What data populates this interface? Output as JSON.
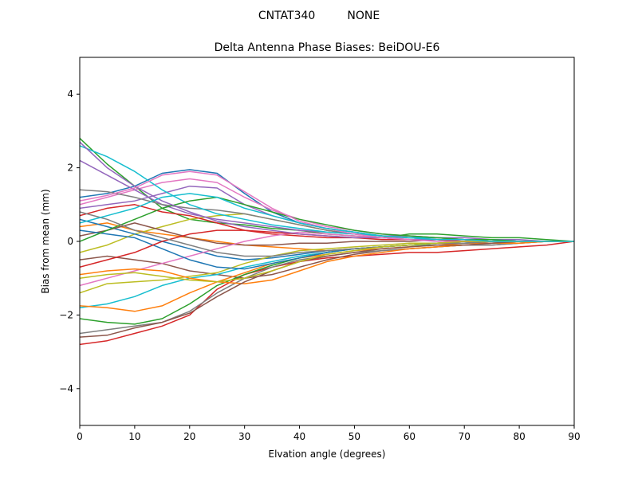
{
  "figure": {
    "suptitle": "CNTAT340         NONE"
  },
  "chart_data": {
    "type": "line",
    "title": "Delta Antenna Phase Biases: BeiDOU-E6",
    "xlabel": "Elvation angle (degrees)",
    "ylabel": "Bias from mean (mm)",
    "xlim": [
      0,
      90
    ],
    "ylim": [
      -5,
      5
    ],
    "xticks": [
      0,
      10,
      20,
      30,
      40,
      50,
      60,
      70,
      80,
      90
    ],
    "yticks": [
      -4,
      -2,
      0,
      2,
      4
    ],
    "xtick_labels": [
      "0",
      "10",
      "20",
      "30",
      "40",
      "50",
      "60",
      "70",
      "80",
      "90"
    ],
    "ytick_labels": [
      "−4",
      "−2",
      "0",
      "2",
      "4"
    ],
    "grid": false,
    "legend": "none",
    "x": [
      0,
      5,
      10,
      15,
      20,
      25,
      30,
      35,
      40,
      45,
      50,
      55,
      60,
      65,
      70,
      75,
      80,
      85,
      90
    ],
    "color_cycle": [
      "#1f77b4",
      "#ff7f0e",
      "#2ca02c",
      "#d62728",
      "#9467bd",
      "#8c564b",
      "#e377c2",
      "#7f7f7f",
      "#bcbd22",
      "#17becf"
    ],
    "series": [
      {
        "values": [
          1.2,
          1.3,
          1.5,
          1.85,
          1.95,
          1.85,
          1.3,
          0.8,
          0.5,
          0.35,
          0.25,
          0.15,
          0.1,
          0.1,
          0.05,
          0.05,
          0.0,
          0.0,
          0
        ]
      },
      {
        "values": [
          0.4,
          0.5,
          0.3,
          0.2,
          0.1,
          0.0,
          -0.1,
          -0.15,
          -0.2,
          -0.25,
          -0.2,
          -0.15,
          -0.1,
          -0.05,
          0.0,
          0.0,
          0.0,
          0.0,
          0
        ]
      },
      {
        "values": [
          2.8,
          2.1,
          1.5,
          0.9,
          0.6,
          0.5,
          0.45,
          0.35,
          0.3,
          0.2,
          0.15,
          0.1,
          0.2,
          0.2,
          0.15,
          0.1,
          0.1,
          0.05,
          0
        ]
      },
      {
        "values": [
          -2.8,
          -2.7,
          -2.5,
          -2.3,
          -2.0,
          -1.3,
          -0.9,
          -0.7,
          -0.55,
          -0.45,
          -0.4,
          -0.35,
          -0.3,
          -0.3,
          -0.25,
          -0.2,
          -0.15,
          -0.1,
          0
        ]
      },
      {
        "values": [
          0.9,
          1.0,
          1.1,
          1.3,
          1.5,
          1.45,
          1.0,
          0.7,
          0.5,
          0.35,
          0.25,
          0.15,
          0.1,
          0.05,
          0.05,
          0.0,
          0.0,
          0.0,
          0
        ]
      },
      {
        "values": [
          -0.5,
          -0.4,
          -0.5,
          -0.6,
          -0.8,
          -0.9,
          -1.0,
          -0.9,
          -0.7,
          -0.5,
          -0.35,
          -0.25,
          -0.2,
          -0.15,
          -0.1,
          -0.1,
          -0.05,
          0.0,
          0
        ]
      },
      {
        "values": [
          1.0,
          1.2,
          1.4,
          1.6,
          1.7,
          1.6,
          1.2,
          0.85,
          0.6,
          0.4,
          0.3,
          0.2,
          0.15,
          0.1,
          0.05,
          0.05,
          0.0,
          0.0,
          0
        ]
      },
      {
        "values": [
          -2.5,
          -2.4,
          -2.3,
          -2.2,
          -1.9,
          -1.4,
          -1.0,
          -0.7,
          -0.5,
          -0.4,
          -0.3,
          -0.25,
          -0.2,
          -0.15,
          -0.1,
          -0.1,
          -0.05,
          0.0,
          0
        ]
      },
      {
        "values": [
          -0.3,
          -0.1,
          0.2,
          0.4,
          0.6,
          0.7,
          0.75,
          0.6,
          0.45,
          0.3,
          0.2,
          0.15,
          0.1,
          0.05,
          0.05,
          0.0,
          0.0,
          0.0,
          0
        ]
      },
      {
        "values": [
          -1.8,
          -1.7,
          -1.5,
          -1.2,
          -1.0,
          -0.9,
          -0.7,
          -0.55,
          -0.4,
          -0.3,
          -0.2,
          -0.15,
          -0.1,
          -0.1,
          -0.05,
          -0.05,
          0.0,
          0.0,
          0
        ]
      },
      {
        "values": [
          0.6,
          0.4,
          0.2,
          0.0,
          -0.2,
          -0.4,
          -0.5,
          -0.45,
          -0.35,
          -0.25,
          -0.2,
          -0.15,
          -0.1,
          -0.05,
          -0.05,
          0.0,
          0.0,
          0.0,
          0
        ]
      },
      {
        "values": [
          -1.75,
          -1.8,
          -1.9,
          -1.75,
          -1.4,
          -1.1,
          -0.85,
          -0.6,
          -0.45,
          -0.35,
          -0.25,
          -0.2,
          -0.15,
          -0.1,
          -0.05,
          -0.05,
          0.0,
          0.0,
          0
        ]
      },
      {
        "values": [
          -2.1,
          -2.2,
          -2.25,
          -2.1,
          -1.7,
          -1.2,
          -0.9,
          -0.65,
          -0.45,
          -0.3,
          -0.2,
          -0.15,
          -0.1,
          -0.05,
          0.0,
          0.0,
          0.0,
          0.0,
          0
        ]
      },
      {
        "values": [
          0.7,
          0.9,
          1.0,
          0.8,
          0.7,
          0.5,
          0.3,
          0.2,
          0.15,
          0.1,
          0.1,
          0.05,
          0.05,
          0.05,
          0.0,
          0.0,
          0.0,
          0.0,
          0
        ]
      },
      {
        "values": [
          2.2,
          1.8,
          1.4,
          1.0,
          0.75,
          0.6,
          0.5,
          0.4,
          0.3,
          0.25,
          0.2,
          0.15,
          0.15,
          0.1,
          0.1,
          0.05,
          0.05,
          0.0,
          0
        ]
      },
      {
        "values": [
          0.15,
          0.3,
          0.5,
          0.3,
          0.1,
          -0.05,
          -0.1,
          -0.1,
          -0.05,
          -0.05,
          0.0,
          0.0,
          0.0,
          0.05,
          0.05,
          0.0,
          0.0,
          0.0,
          0
        ]
      },
      {
        "values": [
          -1.2,
          -1.0,
          -0.8,
          -0.6,
          -0.4,
          -0.2,
          0.0,
          0.15,
          0.25,
          0.2,
          0.15,
          0.1,
          0.1,
          0.05,
          0.05,
          0.0,
          0.0,
          0.0,
          0
        ]
      },
      {
        "values": [
          1.4,
          1.35,
          1.2,
          1.0,
          0.9,
          0.85,
          0.75,
          0.6,
          0.45,
          0.3,
          0.2,
          0.15,
          0.1,
          0.05,
          0.05,
          0.0,
          0.0,
          0.0,
          0
        ]
      },
      {
        "values": [
          -1.4,
          -1.15,
          -1.1,
          -1.05,
          -0.95,
          -0.85,
          -0.6,
          -0.4,
          -0.25,
          -0.2,
          -0.15,
          -0.1,
          -0.05,
          -0.05,
          0.0,
          0.0,
          0.0,
          0.0,
          0
        ]
      },
      {
        "values": [
          2.6,
          2.3,
          1.9,
          1.4,
          1.0,
          0.75,
          0.6,
          0.45,
          0.35,
          0.25,
          0.2,
          0.15,
          0.1,
          0.1,
          0.05,
          0.05,
          0.0,
          0.0,
          0
        ]
      },
      {
        "values": [
          0.3,
          0.2,
          0.1,
          -0.2,
          -0.5,
          -0.7,
          -0.75,
          -0.6,
          -0.45,
          -0.3,
          -0.2,
          -0.15,
          -0.1,
          -0.05,
          -0.05,
          0.0,
          0.0,
          0.0,
          0
        ]
      },
      {
        "values": [
          -0.9,
          -0.8,
          -0.75,
          -0.8,
          -1.0,
          -1.1,
          -1.15,
          -1.05,
          -0.8,
          -0.55,
          -0.4,
          -0.3,
          -0.2,
          -0.15,
          -0.1,
          -0.05,
          -0.05,
          0.0,
          0
        ]
      },
      {
        "values": [
          0.0,
          0.3,
          0.6,
          0.9,
          1.1,
          1.2,
          1.0,
          0.8,
          0.6,
          0.45,
          0.3,
          0.2,
          0.15,
          0.1,
          0.05,
          0.05,
          0.0,
          0.0,
          0
        ]
      },
      {
        "values": [
          -0.7,
          -0.5,
          -0.3,
          0.0,
          0.2,
          0.3,
          0.3,
          0.25,
          0.2,
          0.15,
          0.1,
          0.1,
          0.05,
          0.05,
          0.0,
          0.0,
          0.0,
          0.0,
          0
        ]
      },
      {
        "values": [
          2.7,
          2.0,
          1.5,
          1.1,
          0.8,
          0.55,
          0.4,
          0.3,
          0.2,
          0.15,
          0.1,
          0.1,
          0.05,
          0.05,
          0.05,
          0.0,
          0.0,
          0.0,
          0
        ]
      },
      {
        "values": [
          -2.6,
          -2.55,
          -2.35,
          -2.2,
          -1.95,
          -1.5,
          -1.1,
          -0.8,
          -0.55,
          -0.4,
          -0.3,
          -0.2,
          -0.15,
          -0.1,
          -0.1,
          -0.05,
          0.0,
          0.0,
          0
        ]
      },
      {
        "values": [
          1.1,
          1.25,
          1.45,
          1.8,
          1.9,
          1.8,
          1.35,
          0.9,
          0.55,
          0.35,
          0.2,
          0.1,
          0.05,
          0.0,
          0.0,
          0.0,
          0.0,
          0.0,
          0
        ]
      },
      {
        "values": [
          0.8,
          0.6,
          0.3,
          0.1,
          -0.1,
          -0.3,
          -0.4,
          -0.4,
          -0.3,
          -0.25,
          -0.2,
          -0.15,
          -0.1,
          -0.05,
          -0.05,
          0.0,
          0.0,
          0.0,
          0
        ]
      },
      {
        "values": [
          -1.0,
          -0.9,
          -0.85,
          -0.95,
          -1.05,
          -1.1,
          -1.0,
          -0.8,
          -0.55,
          -0.35,
          -0.25,
          -0.15,
          -0.1,
          -0.05,
          0.0,
          0.0,
          0.0,
          0.0,
          0
        ]
      },
      {
        "values": [
          0.5,
          0.7,
          0.9,
          1.2,
          1.3,
          1.2,
          0.9,
          0.7,
          0.5,
          0.35,
          0.25,
          0.15,
          0.1,
          0.05,
          0.05,
          0.0,
          0.0,
          0.0,
          0
        ]
      }
    ]
  }
}
